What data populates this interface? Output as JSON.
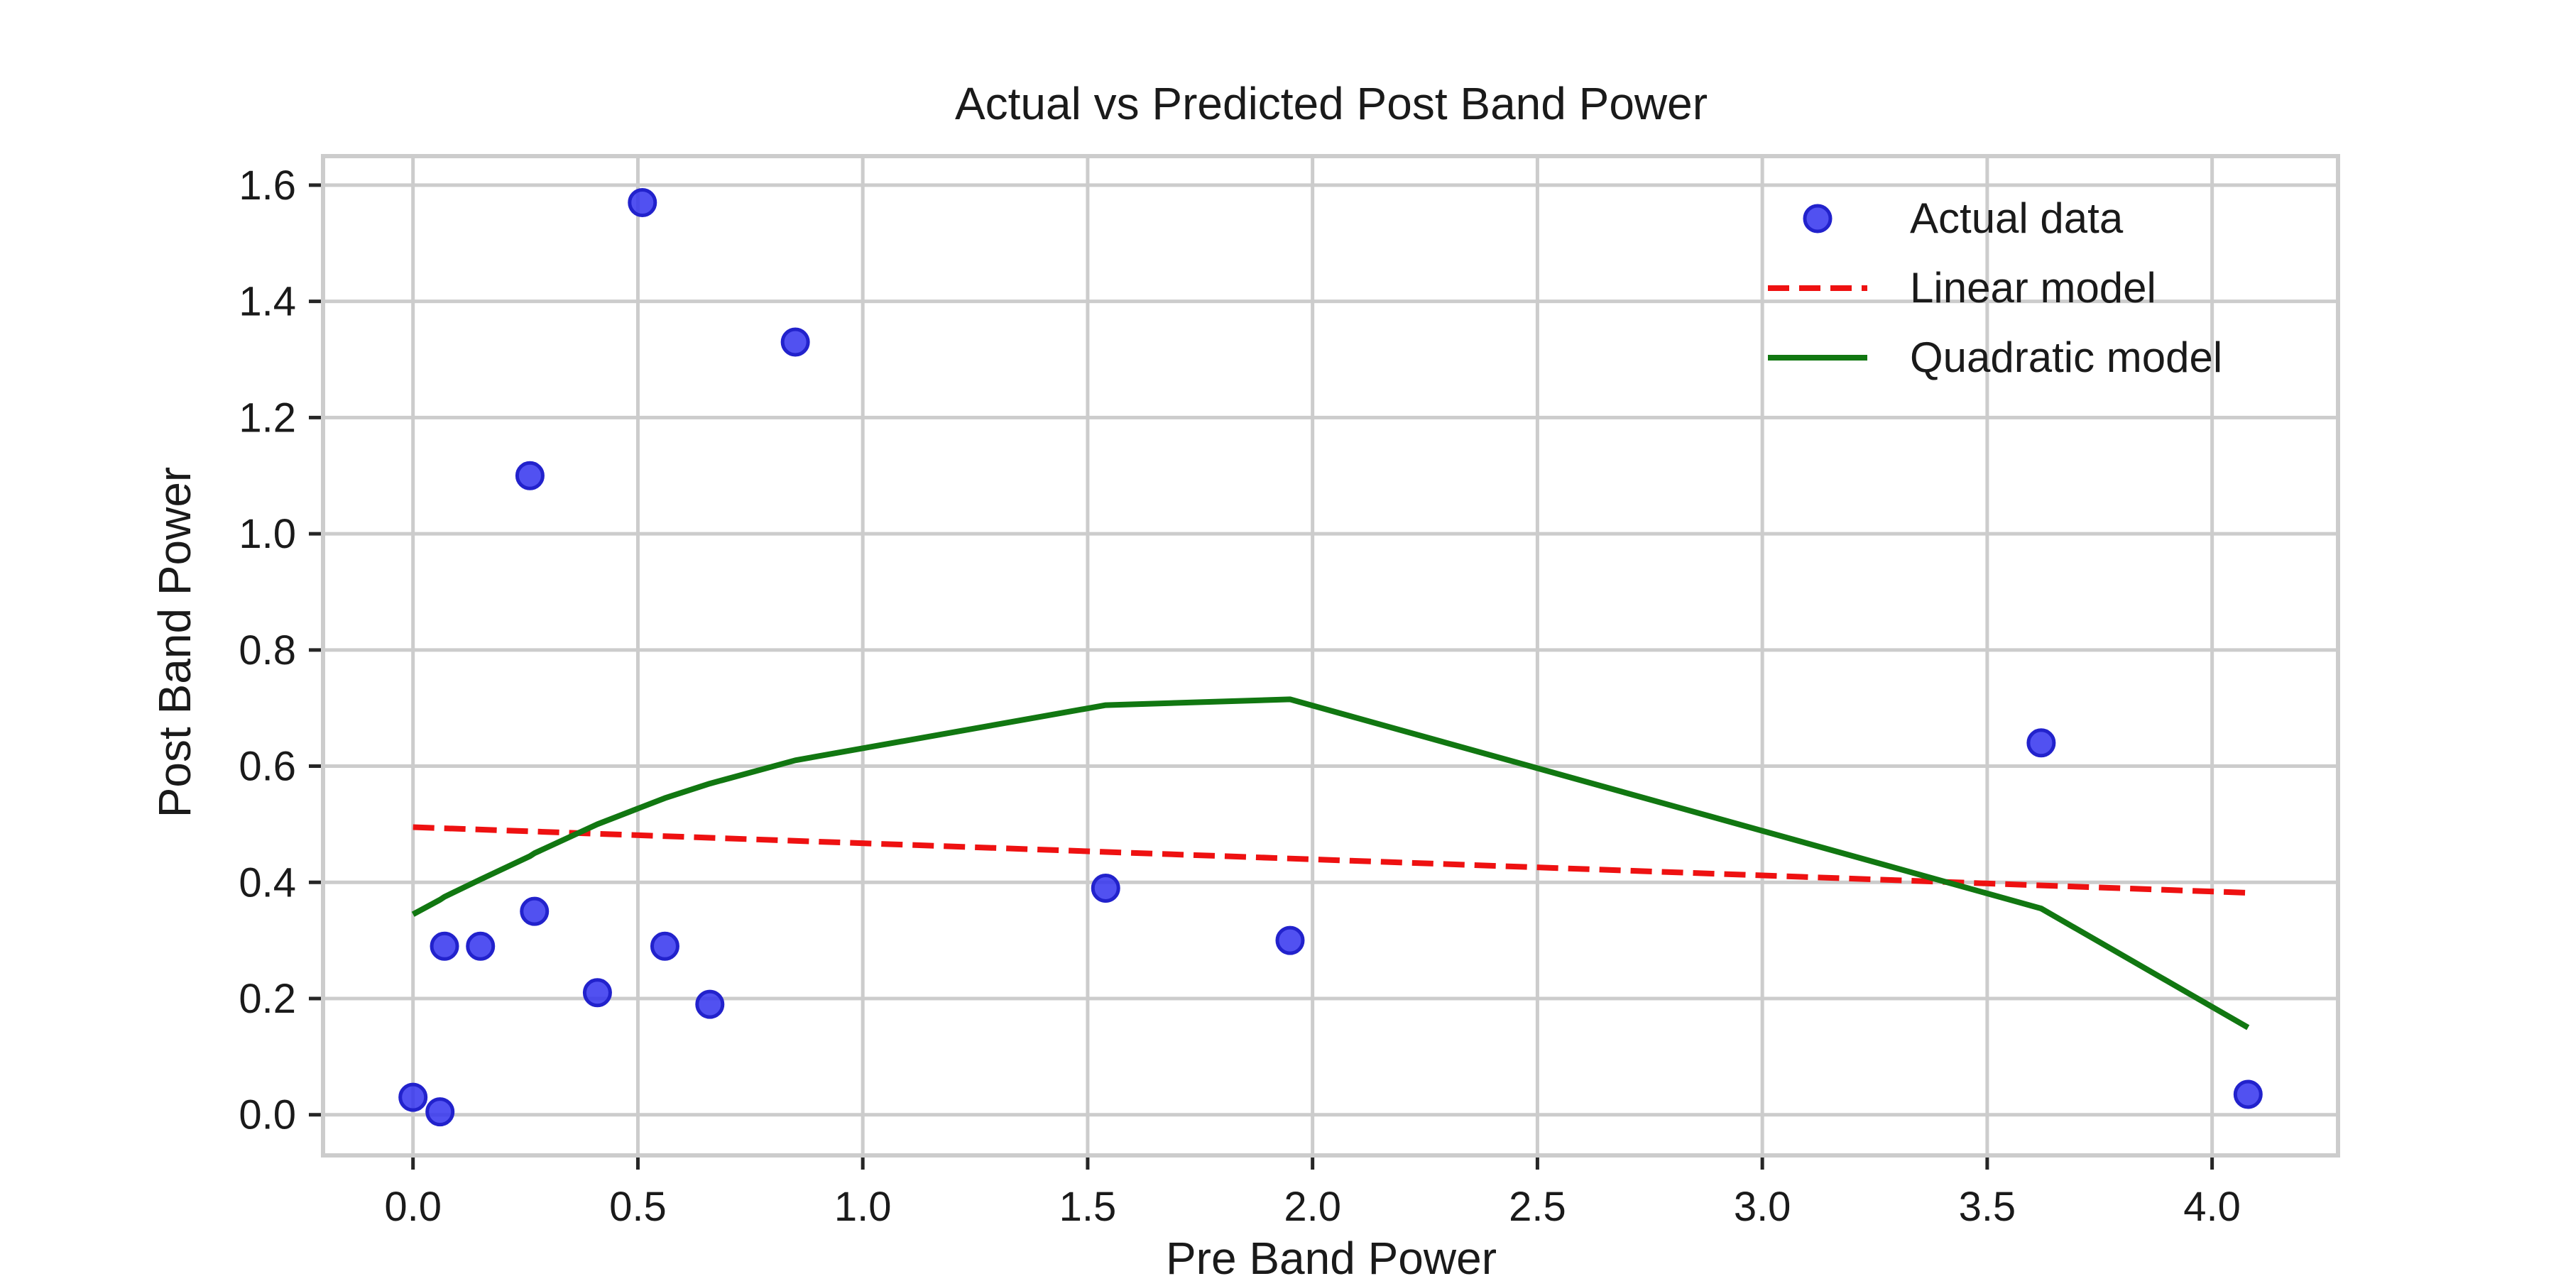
{
  "chart_data": {
    "type": "scatter",
    "title": "Actual vs Predicted Post Band Power",
    "xlabel": "Pre Band Power",
    "ylabel": "Post Band Power",
    "xlim": [
      -0.2,
      4.28
    ],
    "ylim": [
      -0.07,
      1.65
    ],
    "x_ticks": [
      0.0,
      0.5,
      1.0,
      1.5,
      2.0,
      2.5,
      3.0,
      3.5,
      4.0
    ],
    "x_tick_labels": [
      "0.0",
      "0.5",
      "1.0",
      "1.5",
      "2.0",
      "2.5",
      "3.0",
      "3.5",
      "4.0"
    ],
    "y_ticks": [
      0.0,
      0.2,
      0.4,
      0.6,
      0.8,
      1.0,
      1.2,
      1.4,
      1.6
    ],
    "y_tick_labels": [
      "0.0",
      "0.2",
      "0.4",
      "0.6",
      "0.8",
      "1.0",
      "1.2",
      "1.4",
      "1.6"
    ],
    "grid": true,
    "legend_position": "top-right",
    "series": [
      {
        "name": "Actual data",
        "kind": "scatter",
        "color": "#3333ee",
        "points": [
          [
            0.0,
            0.03
          ],
          [
            0.06,
            0.005
          ],
          [
            0.07,
            0.29
          ],
          [
            0.15,
            0.29
          ],
          [
            0.26,
            1.1
          ],
          [
            0.27,
            0.35
          ],
          [
            0.41,
            0.21
          ],
          [
            0.51,
            1.57
          ],
          [
            0.56,
            0.29
          ],
          [
            0.66,
            0.19
          ],
          [
            0.85,
            1.33
          ],
          [
            1.54,
            0.39
          ],
          [
            1.95,
            0.3
          ],
          [
            3.62,
            0.64
          ],
          [
            4.08,
            0.035
          ]
        ]
      },
      {
        "name": "Linear model",
        "kind": "line",
        "style": "dashed",
        "color": "#ee1111",
        "points": [
          [
            0.0,
            0.495
          ],
          [
            4.08,
            0.382
          ]
        ]
      },
      {
        "name": "Quadratic model",
        "kind": "line",
        "style": "solid",
        "color": "#117711",
        "points": [
          [
            0.0,
            0.345
          ],
          [
            0.06,
            0.37
          ],
          [
            0.07,
            0.375
          ],
          [
            0.15,
            0.405
          ],
          [
            0.26,
            0.445
          ],
          [
            0.27,
            0.45
          ],
          [
            0.41,
            0.5
          ],
          [
            0.51,
            0.53
          ],
          [
            0.56,
            0.545
          ],
          [
            0.66,
            0.57
          ],
          [
            0.85,
            0.61
          ],
          [
            1.54,
            0.705
          ],
          [
            1.95,
            0.715
          ],
          [
            3.62,
            0.355
          ],
          [
            4.08,
            0.15
          ]
        ]
      }
    ]
  }
}
